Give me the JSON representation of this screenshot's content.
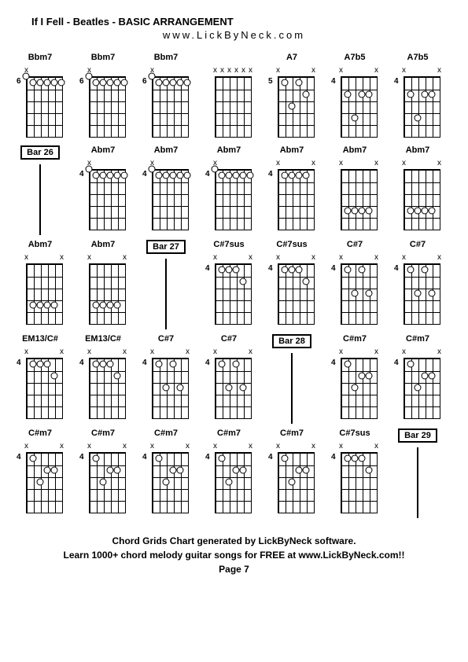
{
  "title": "If I Fell - Beatles  - BASIC ARRANGEMENT",
  "subtitle": "www.LickByNeck.com",
  "footer_line1": "Chord Grids Chart generated by LickByNeck software.",
  "footer_line2": "Learn 1000+ chord melody guitar songs for FREE at www.LickByNeck.com!!",
  "footer_line3": "Page 7",
  "diagram_style": {
    "strings": 6,
    "frets": 5,
    "string_spacing": 9,
    "fret_spacing": 15,
    "dot_size": 7,
    "text_color": "#000000",
    "bg_color": "#ffffff"
  },
  "chords": [
    {
      "type": "chord",
      "name": "Bbm7",
      "fret": "6",
      "markers": [
        "x",
        "",
        "",
        "",
        "",
        ""
      ],
      "tops": [
        1,
        0,
        0,
        0,
        0,
        0
      ],
      "dots": [
        [
          1,
          2
        ],
        [
          1,
          3
        ],
        [
          1,
          4
        ],
        [
          1,
          5
        ],
        [
          1,
          6
        ]
      ]
    },
    {
      "type": "chord",
      "name": "Bbm7",
      "fret": "6",
      "markers": [
        "x",
        "",
        "",
        "",
        "",
        ""
      ],
      "tops": [
        1,
        0,
        0,
        0,
        0,
        0
      ],
      "dots": [
        [
          1,
          2
        ],
        [
          1,
          3
        ],
        [
          1,
          4
        ],
        [
          1,
          5
        ],
        [
          1,
          6
        ]
      ]
    },
    {
      "type": "chord",
      "name": "Bbm7",
      "fret": "6",
      "markers": [
        "x",
        "",
        "",
        "",
        "",
        ""
      ],
      "tops": [
        1,
        0,
        0,
        0,
        0,
        0
      ],
      "dots": [
        [
          1,
          2
        ],
        [
          1,
          3
        ],
        [
          1,
          4
        ],
        [
          1,
          5
        ],
        [
          1,
          6
        ]
      ]
    },
    {
      "type": "chord",
      "name": "",
      "fret": "",
      "markers": [
        "x",
        "x",
        "x",
        "x",
        "x",
        "x"
      ],
      "tops": [
        0,
        0,
        0,
        0,
        0,
        0
      ],
      "dots": []
    },
    {
      "type": "chord",
      "name": "A7",
      "fret": "5",
      "markers": [
        "x",
        "",
        "",
        "",
        "",
        "x"
      ],
      "tops": [
        0,
        0,
        0,
        0,
        0,
        0
      ],
      "dots": [
        [
          1,
          2
        ],
        [
          3,
          3
        ],
        [
          1,
          4
        ],
        [
          2,
          5
        ]
      ]
    },
    {
      "type": "chord",
      "name": "A7b5",
      "fret": "4",
      "markers": [
        "x",
        "",
        "",
        "",
        "",
        "x"
      ],
      "tops": [
        0,
        0,
        0,
        0,
        0,
        0
      ],
      "dots": [
        [
          2,
          2
        ],
        [
          4,
          3
        ],
        [
          2,
          4
        ],
        [
          2,
          5
        ]
      ]
    },
    {
      "type": "chord",
      "name": "A7b5",
      "fret": "4",
      "markers": [
        "x",
        "",
        "",
        "",
        "",
        "x"
      ],
      "tops": [
        0,
        0,
        0,
        0,
        0,
        0
      ],
      "dots": [
        [
          2,
          2
        ],
        [
          4,
          3
        ],
        [
          2,
          4
        ],
        [
          2,
          5
        ]
      ]
    },
    {
      "type": "bar",
      "label": "Bar 26"
    },
    {
      "type": "chord",
      "name": "Abm7",
      "fret": "4",
      "markers": [
        "x",
        "",
        "",
        "",
        "",
        ""
      ],
      "tops": [
        1,
        0,
        0,
        0,
        0,
        0
      ],
      "dots": [
        [
          1,
          2
        ],
        [
          1,
          3
        ],
        [
          1,
          4
        ],
        [
          1,
          5
        ],
        [
          1,
          6
        ]
      ]
    },
    {
      "type": "chord",
      "name": "Abm7",
      "fret": "4",
      "markers": [
        "x",
        "",
        "",
        "",
        "",
        ""
      ],
      "tops": [
        1,
        0,
        0,
        0,
        0,
        0
      ],
      "dots": [
        [
          1,
          2
        ],
        [
          1,
          3
        ],
        [
          1,
          4
        ],
        [
          1,
          5
        ],
        [
          1,
          6
        ]
      ]
    },
    {
      "type": "chord",
      "name": "Abm7",
      "fret": "4",
      "markers": [
        "x",
        "",
        "",
        "",
        "",
        ""
      ],
      "tops": [
        1,
        0,
        0,
        0,
        0,
        0
      ],
      "dots": [
        [
          1,
          2
        ],
        [
          1,
          3
        ],
        [
          1,
          4
        ],
        [
          1,
          5
        ],
        [
          1,
          6
        ]
      ]
    },
    {
      "type": "chord",
      "name": "Abm7",
      "fret": "4",
      "markers": [
        "x",
        "",
        "",
        "",
        "",
        "x"
      ],
      "tops": [
        0,
        0,
        0,
        0,
        0,
        0
      ],
      "dots": [
        [
          1,
          2
        ],
        [
          1,
          3
        ],
        [
          1,
          4
        ],
        [
          1,
          5
        ]
      ]
    },
    {
      "type": "chord",
      "name": "Abm7",
      "fret": "",
      "markers": [
        "x",
        "",
        "",
        "",
        "",
        "x"
      ],
      "tops": [
        0,
        0,
        0,
        0,
        0,
        0
      ],
      "dots": [
        [
          4,
          2
        ],
        [
          4,
          3
        ],
        [
          4,
          4
        ],
        [
          4,
          5
        ]
      ]
    },
    {
      "type": "chord",
      "name": "Abm7",
      "fret": "",
      "markers": [
        "x",
        "",
        "",
        "",
        "",
        "x"
      ],
      "tops": [
        0,
        0,
        0,
        0,
        0,
        0
      ],
      "dots": [
        [
          4,
          2
        ],
        [
          4,
          3
        ],
        [
          4,
          4
        ],
        [
          4,
          5
        ]
      ]
    },
    {
      "type": "chord",
      "name": "Abm7",
      "fret": "",
      "markers": [
        "x",
        "",
        "",
        "",
        "",
        "x"
      ],
      "tops": [
        0,
        0,
        0,
        0,
        0,
        0
      ],
      "dots": [
        [
          4,
          2
        ],
        [
          4,
          3
        ],
        [
          4,
          4
        ],
        [
          4,
          5
        ]
      ]
    },
    {
      "type": "chord",
      "name": "Abm7",
      "fret": "",
      "markers": [
        "x",
        "",
        "",
        "",
        "",
        "x"
      ],
      "tops": [
        0,
        0,
        0,
        0,
        0,
        0
      ],
      "dots": [
        [
          4,
          2
        ],
        [
          4,
          3
        ],
        [
          4,
          4
        ],
        [
          4,
          5
        ]
      ]
    },
    {
      "type": "bar",
      "label": "Bar 27"
    },
    {
      "type": "chord",
      "name": "C#7sus",
      "fret": "4",
      "markers": [
        "x",
        "",
        "",
        "",
        "",
        "x"
      ],
      "tops": [
        0,
        0,
        0,
        0,
        0,
        0
      ],
      "dots": [
        [
          1,
          2
        ],
        [
          1,
          3
        ],
        [
          1,
          4
        ],
        [
          2,
          5
        ]
      ]
    },
    {
      "type": "chord",
      "name": "C#7sus",
      "fret": "4",
      "markers": [
        "x",
        "",
        "",
        "",
        "",
        "x"
      ],
      "tops": [
        0,
        0,
        0,
        0,
        0,
        0
      ],
      "dots": [
        [
          1,
          2
        ],
        [
          1,
          3
        ],
        [
          1,
          4
        ],
        [
          2,
          5
        ]
      ]
    },
    {
      "type": "chord",
      "name": "C#7",
      "fret": "4",
      "markers": [
        "x",
        "",
        "",
        "",
        "",
        "x"
      ],
      "tops": [
        0,
        0,
        0,
        0,
        0,
        0
      ],
      "dots": [
        [
          1,
          2
        ],
        [
          3,
          3
        ],
        [
          1,
          4
        ],
        [
          3,
          5
        ]
      ]
    },
    {
      "type": "chord",
      "name": "C#7",
      "fret": "4",
      "markers": [
        "x",
        "",
        "",
        "",
        "",
        "x"
      ],
      "tops": [
        0,
        0,
        0,
        0,
        0,
        0
      ],
      "dots": [
        [
          1,
          2
        ],
        [
          3,
          3
        ],
        [
          1,
          4
        ],
        [
          3,
          5
        ]
      ]
    },
    {
      "type": "chord",
      "name": "EM13/C#",
      "fret": "4",
      "markers": [
        "x",
        "",
        "",
        "",
        "",
        "x"
      ],
      "tops": [
        0,
        0,
        0,
        0,
        0,
        0
      ],
      "dots": [
        [
          1,
          2
        ],
        [
          1,
          3
        ],
        [
          1,
          4
        ],
        [
          2,
          5
        ]
      ]
    },
    {
      "type": "chord",
      "name": "EM13/C#",
      "fret": "4",
      "markers": [
        "x",
        "",
        "",
        "",
        "",
        "x"
      ],
      "tops": [
        0,
        0,
        0,
        0,
        0,
        0
      ],
      "dots": [
        [
          1,
          2
        ],
        [
          1,
          3
        ],
        [
          1,
          4
        ],
        [
          2,
          5
        ]
      ]
    },
    {
      "type": "chord",
      "name": "C#7",
      "fret": "4",
      "markers": [
        "x",
        "",
        "",
        "",
        "",
        "x"
      ],
      "tops": [
        0,
        0,
        0,
        0,
        0,
        0
      ],
      "dots": [
        [
          1,
          2
        ],
        [
          3,
          3
        ],
        [
          1,
          4
        ],
        [
          3,
          5
        ]
      ]
    },
    {
      "type": "chord",
      "name": "C#7",
      "fret": "4",
      "markers": [
        "x",
        "",
        "",
        "",
        "",
        "x"
      ],
      "tops": [
        0,
        0,
        0,
        0,
        0,
        0
      ],
      "dots": [
        [
          1,
          2
        ],
        [
          3,
          3
        ],
        [
          1,
          4
        ],
        [
          3,
          5
        ]
      ]
    },
    {
      "type": "bar",
      "label": "Bar 28"
    },
    {
      "type": "chord",
      "name": "C#m7",
      "fret": "4",
      "markers": [
        "x",
        "",
        "",
        "",
        "",
        "x"
      ],
      "tops": [
        0,
        0,
        0,
        0,
        0,
        0
      ],
      "dots": [
        [
          1,
          2
        ],
        [
          3,
          3
        ],
        [
          2,
          4
        ],
        [
          2,
          5
        ]
      ]
    },
    {
      "type": "chord",
      "name": "C#m7",
      "fret": "4",
      "markers": [
        "x",
        "",
        "",
        "",
        "",
        "x"
      ],
      "tops": [
        0,
        0,
        0,
        0,
        0,
        0
      ],
      "dots": [
        [
          1,
          2
        ],
        [
          3,
          3
        ],
        [
          2,
          4
        ],
        [
          2,
          5
        ]
      ]
    },
    {
      "type": "chord",
      "name": "C#m7",
      "fret": "4",
      "markers": [
        "x",
        "",
        "",
        "",
        "",
        "x"
      ],
      "tops": [
        0,
        0,
        0,
        0,
        0,
        0
      ],
      "dots": [
        [
          1,
          2
        ],
        [
          3,
          3
        ],
        [
          2,
          4
        ],
        [
          2,
          5
        ]
      ]
    },
    {
      "type": "chord",
      "name": "C#m7",
      "fret": "4",
      "markers": [
        "x",
        "",
        "",
        "",
        "",
        "x"
      ],
      "tops": [
        0,
        0,
        0,
        0,
        0,
        0
      ],
      "dots": [
        [
          1,
          2
        ],
        [
          3,
          3
        ],
        [
          2,
          4
        ],
        [
          2,
          5
        ]
      ]
    },
    {
      "type": "chord",
      "name": "C#m7",
      "fret": "4",
      "markers": [
        "x",
        "",
        "",
        "",
        "",
        "x"
      ],
      "tops": [
        0,
        0,
        0,
        0,
        0,
        0
      ],
      "dots": [
        [
          1,
          2
        ],
        [
          3,
          3
        ],
        [
          2,
          4
        ],
        [
          2,
          5
        ]
      ]
    },
    {
      "type": "chord",
      "name": "C#m7",
      "fret": "4",
      "markers": [
        "x",
        "",
        "",
        "",
        "",
        "x"
      ],
      "tops": [
        0,
        0,
        0,
        0,
        0,
        0
      ],
      "dots": [
        [
          1,
          2
        ],
        [
          3,
          3
        ],
        [
          2,
          4
        ],
        [
          2,
          5
        ]
      ]
    },
    {
      "type": "chord",
      "name": "C#m7",
      "fret": "4",
      "markers": [
        "x",
        "",
        "",
        "",
        "",
        "x"
      ],
      "tops": [
        0,
        0,
        0,
        0,
        0,
        0
      ],
      "dots": [
        [
          1,
          2
        ],
        [
          3,
          3
        ],
        [
          2,
          4
        ],
        [
          2,
          5
        ]
      ]
    },
    {
      "type": "chord",
      "name": "C#7sus",
      "fret": "4",
      "markers": [
        "x",
        "",
        "",
        "",
        "",
        "x"
      ],
      "tops": [
        0,
        0,
        0,
        0,
        0,
        0
      ],
      "dots": [
        [
          1,
          2
        ],
        [
          1,
          3
        ],
        [
          1,
          4
        ],
        [
          2,
          5
        ]
      ]
    },
    {
      "type": "bar",
      "label": "Bar 29"
    }
  ]
}
